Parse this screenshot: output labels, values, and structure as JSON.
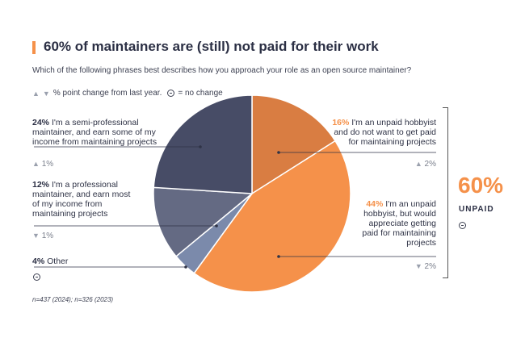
{
  "header": {
    "title": "60% of maintainers are (still) not paid for their work",
    "subtitle": "Which of the following phrases best describes how you approach your role as an open source maintainer?",
    "legend_text": "% point change from last year.",
    "legend_nochange": "= no change"
  },
  "labels": {
    "semi_pro": {
      "pct": "24%",
      "text_l1": "I'm a semi-professional",
      "text_l2": "maintainer, and earn some of my",
      "text_l3": "income from maintaining projects",
      "change": "1%"
    },
    "pro": {
      "pct": "12%",
      "text_l1": "I'm a professional",
      "text_l2": "maintainer, and earn most",
      "text_l3": "of my income from",
      "text_l4": "maintaining projects",
      "change": "1%"
    },
    "other": {
      "pct": "4%",
      "text": "Other"
    },
    "hobbyist_no": {
      "pct": "16%",
      "text_l1": "I'm an unpaid hobbyist",
      "text_l2": "and do not want to get paid",
      "text_l3": "for maintaining projects",
      "change": "2%"
    },
    "hobbyist_yes": {
      "pct": "44%",
      "text_l1": "I'm an unpaid",
      "text_l2": "hobbyist, but would",
      "text_l3": "appreciate getting",
      "text_l4": "paid for maintaining",
      "text_l5": "projects",
      "change": "2%"
    }
  },
  "summary": {
    "value": "60%",
    "label": "UNPAID"
  },
  "footnote": "n=437 (2024); n=326 (2023)",
  "colors": {
    "accent": "#f5914a",
    "accent_dark": "#d97d42",
    "navy": "#474c66",
    "slate": "#646a83",
    "steel": "#7b8aab"
  },
  "chart_data": {
    "type": "pie",
    "title": "60% of maintainers are (still) not paid for their work",
    "slices": [
      {
        "label": "I'm an unpaid hobbyist and do not want to get paid for maintaining projects",
        "value": 16,
        "change": 2,
        "direction": "up",
        "color": "#d97d42"
      },
      {
        "label": "I'm an unpaid hobbyist, but would appreciate getting paid for maintaining projects",
        "value": 44,
        "change": 2,
        "direction": "down",
        "color": "#f5914a"
      },
      {
        "label": "Other",
        "value": 4,
        "change": 0,
        "direction": "none",
        "color": "#7b8aab"
      },
      {
        "label": "I'm a professional maintainer, and earn most of my income from maintaining projects",
        "value": 12,
        "change": 1,
        "direction": "down",
        "color": "#646a83"
      },
      {
        "label": "I'm a semi-professional maintainer, and earn some of my income from maintaining projects",
        "value": 24,
        "change": 1,
        "direction": "up",
        "color": "#474c66"
      }
    ]
  }
}
